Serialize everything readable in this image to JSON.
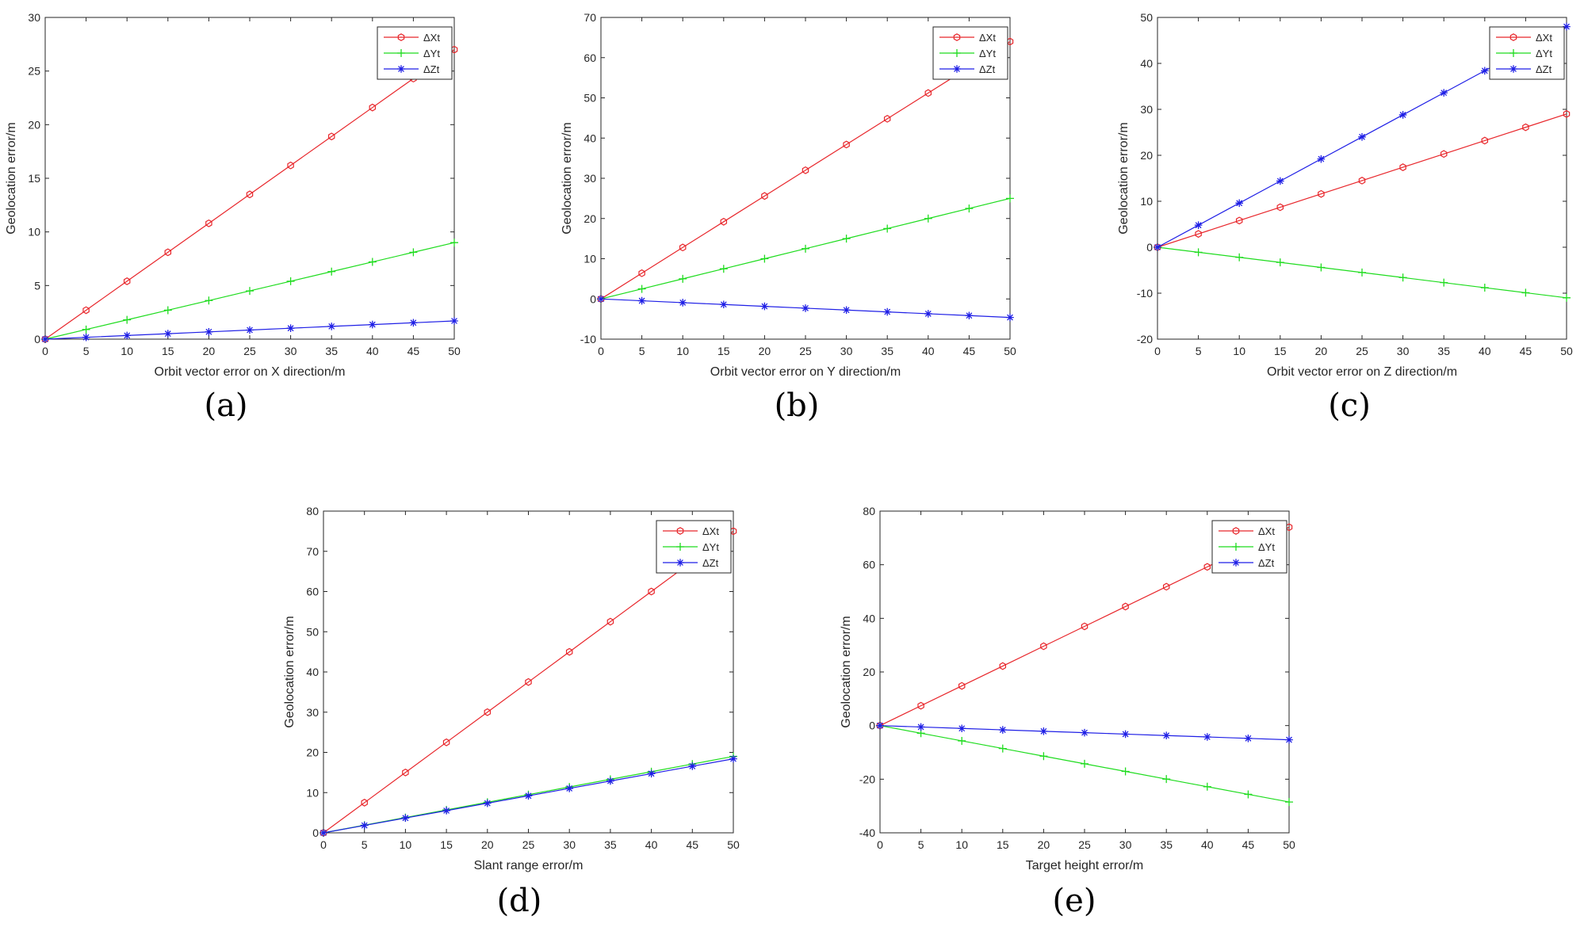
{
  "chart_data": [
    {
      "type": "line",
      "panel_label": "(a)",
      "xlabel": "Orbit vector error on X direction/m",
      "ylabel": "Geolocation error/m",
      "xlim": [
        0,
        50
      ],
      "ylim": [
        0,
        30
      ],
      "xticks": [
        0,
        5,
        10,
        15,
        20,
        25,
        30,
        35,
        40,
        45,
        50
      ],
      "yticks": [
        0,
        5,
        10,
        15,
        20,
        25,
        30
      ],
      "legend_position": "top-right",
      "x": [
        0,
        5,
        10,
        15,
        20,
        25,
        30,
        35,
        40,
        45,
        50
      ],
      "series": [
        {
          "name": "ΔXt",
          "color": "#e8262b",
          "marker": "hexagon",
          "values": [
            0,
            2.7,
            5.4,
            8.1,
            10.8,
            13.5,
            16.2,
            18.9,
            21.6,
            24.3,
            27.0
          ]
        },
        {
          "name": "ΔYt",
          "color": "#1fdc1f",
          "marker": "plus",
          "values": [
            0,
            0.9,
            1.8,
            2.7,
            3.6,
            4.5,
            5.4,
            6.3,
            7.2,
            8.1,
            9.0
          ]
        },
        {
          "name": "ΔZt",
          "color": "#1f1fe6",
          "marker": "star",
          "values": [
            0,
            0.17,
            0.34,
            0.51,
            0.68,
            0.85,
            1.02,
            1.19,
            1.36,
            1.53,
            1.7
          ]
        }
      ]
    },
    {
      "type": "line",
      "panel_label": "(b)",
      "xlabel": "Orbit vector error on Y direction/m",
      "ylabel": "Geolocation error/m",
      "xlim": [
        0,
        50
      ],
      "ylim": [
        -10,
        70
      ],
      "xticks": [
        0,
        5,
        10,
        15,
        20,
        25,
        30,
        35,
        40,
        45,
        50
      ],
      "yticks": [
        -10,
        0,
        10,
        20,
        30,
        40,
        50,
        60,
        70
      ],
      "legend_position": "top-right",
      "x": [
        0,
        5,
        10,
        15,
        20,
        25,
        30,
        35,
        40,
        45,
        50
      ],
      "series": [
        {
          "name": "ΔXt",
          "color": "#e8262b",
          "marker": "hexagon",
          "values": [
            0,
            6.4,
            12.8,
            19.2,
            25.6,
            32.0,
            38.4,
            44.8,
            51.2,
            57.6,
            64.0
          ]
        },
        {
          "name": "ΔYt",
          "color": "#1fdc1f",
          "marker": "plus",
          "values": [
            0,
            2.5,
            5.0,
            7.5,
            10.0,
            12.5,
            15.0,
            17.5,
            20.0,
            22.5,
            25.0
          ]
        },
        {
          "name": "ΔZt",
          "color": "#1f1fe6",
          "marker": "star",
          "values": [
            0,
            -0.46,
            -0.92,
            -1.38,
            -1.84,
            -2.3,
            -2.76,
            -3.22,
            -3.68,
            -4.14,
            -4.6
          ]
        }
      ]
    },
    {
      "type": "line",
      "panel_label": "(c)",
      "xlabel": "Orbit vector error on Z direction/m",
      "ylabel": "Geolocation error/m",
      "xlim": [
        0,
        50
      ],
      "ylim": [
        -20,
        50
      ],
      "xticks": [
        0,
        5,
        10,
        15,
        20,
        25,
        30,
        35,
        40,
        45,
        50
      ],
      "yticks": [
        -20,
        -10,
        0,
        10,
        20,
        30,
        40,
        50
      ],
      "legend_position": "top-right",
      "x": [
        0,
        5,
        10,
        15,
        20,
        25,
        30,
        35,
        40,
        45,
        50
      ],
      "series": [
        {
          "name": "ΔXt",
          "color": "#e8262b",
          "marker": "hexagon",
          "values": [
            0,
            2.9,
            5.8,
            8.7,
            11.6,
            14.5,
            17.4,
            20.3,
            23.2,
            26.1,
            29.0
          ]
        },
        {
          "name": "ΔYt",
          "color": "#1fdc1f",
          "marker": "plus",
          "values": [
            0,
            -1.1,
            -2.2,
            -3.3,
            -4.4,
            -5.5,
            -6.6,
            -7.7,
            -8.8,
            -9.9,
            -11.0
          ]
        },
        {
          "name": "ΔZt",
          "color": "#1f1fe6",
          "marker": "star",
          "values": [
            0,
            4.8,
            9.6,
            14.4,
            19.2,
            24.0,
            28.8,
            33.6,
            38.4,
            43.2,
            48.0
          ]
        }
      ]
    },
    {
      "type": "line",
      "panel_label": "(d)",
      "xlabel": "Slant range error/m",
      "ylabel": "Geolocation error/m",
      "xlim": [
        0,
        50
      ],
      "ylim": [
        0,
        80
      ],
      "xticks": [
        0,
        5,
        10,
        15,
        20,
        25,
        30,
        35,
        40,
        45,
        50
      ],
      "yticks": [
        0,
        10,
        20,
        30,
        40,
        50,
        60,
        70,
        80
      ],
      "legend_position": "top-right",
      "x": [
        0,
        5,
        10,
        15,
        20,
        25,
        30,
        35,
        40,
        45,
        50
      ],
      "series": [
        {
          "name": "ΔXt",
          "color": "#e8262b",
          "marker": "hexagon",
          "values": [
            0,
            7.5,
            15.0,
            22.5,
            30.0,
            37.5,
            45.0,
            52.5,
            60.0,
            67.5,
            75.0
          ]
        },
        {
          "name": "ΔYt",
          "color": "#1fdc1f",
          "marker": "plus",
          "values": [
            0,
            1.9,
            3.8,
            5.7,
            7.6,
            9.5,
            11.4,
            13.3,
            15.2,
            17.1,
            19.0
          ]
        },
        {
          "name": "ΔZt",
          "color": "#1f1fe6",
          "marker": "star",
          "values": [
            0,
            1.84,
            3.68,
            5.52,
            7.36,
            9.2,
            11.04,
            12.88,
            14.72,
            16.56,
            18.4
          ]
        }
      ]
    },
    {
      "type": "line",
      "panel_label": "(e)",
      "xlabel": "Target height error/m",
      "ylabel": "Geolocation error/m",
      "xlim": [
        0,
        50
      ],
      "ylim": [
        -40,
        80
      ],
      "xticks": [
        0,
        5,
        10,
        15,
        20,
        25,
        30,
        35,
        40,
        45,
        50
      ],
      "yticks": [
        -40,
        -20,
        0,
        20,
        40,
        60,
        80
      ],
      "legend_position": "top-right",
      "x": [
        0,
        5,
        10,
        15,
        20,
        25,
        30,
        35,
        40,
        45,
        50
      ],
      "series": [
        {
          "name": "ΔXt",
          "color": "#e8262b",
          "marker": "hexagon",
          "values": [
            0,
            7.4,
            14.8,
            22.2,
            29.6,
            37.0,
            44.4,
            51.8,
            59.2,
            66.6,
            74.0
          ]
        },
        {
          "name": "ΔYt",
          "color": "#1fdc1f",
          "marker": "plus",
          "values": [
            0,
            -2.85,
            -5.7,
            -8.55,
            -11.4,
            -14.25,
            -17.1,
            -19.95,
            -22.8,
            -25.65,
            -28.5
          ]
        },
        {
          "name": "ΔZt",
          "color": "#1f1fe6",
          "marker": "star",
          "values": [
            0,
            -0.53,
            -1.06,
            -1.59,
            -2.12,
            -2.65,
            -3.18,
            -3.71,
            -4.24,
            -4.77,
            -5.3
          ]
        }
      ]
    }
  ]
}
